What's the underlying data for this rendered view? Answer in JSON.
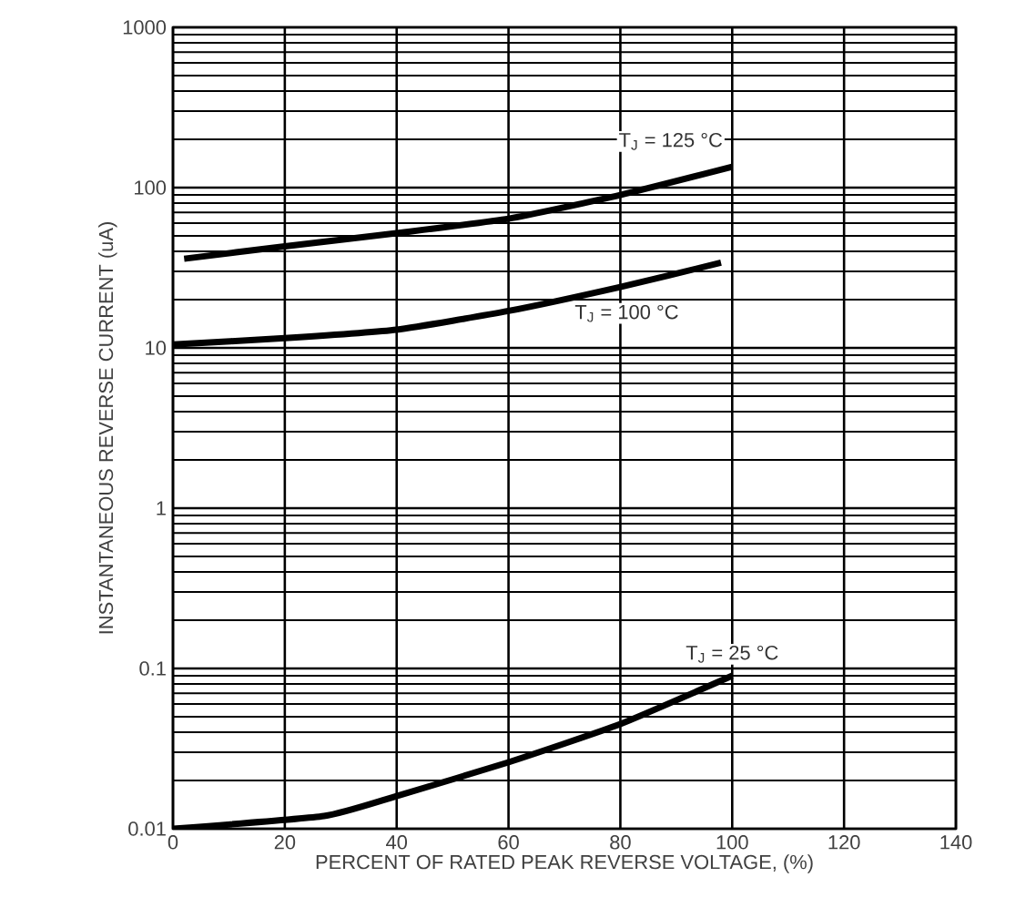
{
  "chart_data": {
    "type": "line",
    "xlabel": "PERCENT OF RATED PEAK REVERSE VOLTAGE, (%)",
    "ylabel": "INSTANTANEOUS REVERSE CURRENT (uA)",
    "log": "y",
    "grid": true,
    "legend": false,
    "marker": "none",
    "line_style": "solid",
    "xlim": [
      0,
      140
    ],
    "xticks": [
      0,
      20,
      40,
      60,
      80,
      100,
      120,
      140
    ],
    "ylim": [
      0.01,
      1000
    ],
    "yticks": [
      0.01,
      0.1,
      1,
      10,
      100,
      1000
    ],
    "series": [
      {
        "name": "T$_{J}$ = 125 °C",
        "color": "#000000",
        "x": [
          2,
          20,
          40,
          60,
          80,
          100
        ],
        "values": [
          36,
          43,
          52,
          64,
          90,
          135
        ]
      },
      {
        "name": "T$_{J}$ = 100 °C",
        "color": "#000000",
        "x": [
          0,
          20,
          40,
          60,
          80,
          98
        ],
        "values": [
          10.5,
          11.5,
          13,
          17,
          24,
          34
        ]
      },
      {
        "name": "T$_{J}$ = 25 °C",
        "color": "#000000",
        "x": [
          0,
          27,
          40,
          60,
          80,
          100
        ],
        "values": [
          0.01,
          0.012,
          0.016,
          0.026,
          0.045,
          0.09
        ]
      }
    ]
  }
}
